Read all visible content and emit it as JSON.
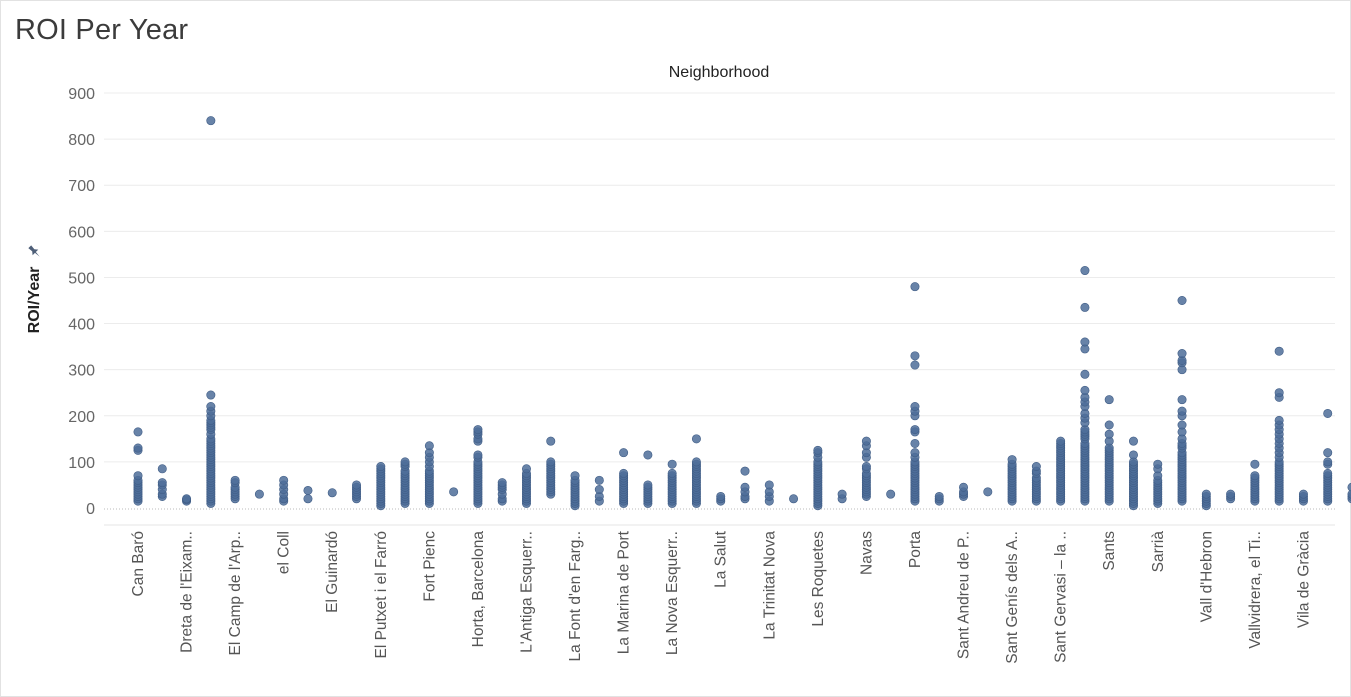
{
  "page": {
    "title": "ROI Per Year"
  },
  "chart_data": {
    "type": "scatter",
    "title": "ROI Per Year",
    "column_header": "Neighborhood",
    "ylabel": "ROI/Year",
    "ylabel_icon": "pin-icon",
    "xlabel": "",
    "ylim": [
      -15,
      920
    ],
    "y_ticks": [
      0,
      100,
      200,
      300,
      400,
      500,
      600,
      700,
      800,
      900
    ],
    "grid": "horizontal",
    "marker_color": "#4e6d99",
    "zero_line": "dotted",
    "categories": [
      "Can Baró",
      "",
      "Dreta de l'Eixam..",
      "",
      "El Camp de l'Arp..",
      "",
      "el Coll",
      "",
      "El Guinardó",
      "",
      "El Putxet i el Farró",
      "",
      "Fort Pienc",
      "",
      "Horta, Barcelona",
      "",
      "L'Antiga Esquerr..",
      "",
      "La Font d'en Farg..",
      "",
      "La Marina de Port",
      "",
      "La Nova Esquerr..",
      "",
      "La Salut",
      "",
      "La Trinitat Nova",
      "",
      "Les Roquetes",
      "",
      "Navas",
      "",
      "Porta",
      "",
      "Sant Andreu de P..",
      "",
      "Sant Genís dels A..",
      "",
      "Sant Gervasi – la ..",
      "",
      "Sants",
      "",
      "Sarrià",
      "",
      "Vall d'Hebron",
      "",
      "Vallvidrera, el Ti..",
      "",
      "Vila de Gràcia",
      ""
    ],
    "series": [
      {
        "values": [
          [
            15,
            20,
            25,
            30,
            35,
            40,
            45,
            50,
            55,
            60,
            70,
            125,
            130,
            165
          ],
          [
            25,
            30,
            40,
            50,
            55,
            85
          ],
          [
            15,
            18,
            20
          ],
          [
            10,
            15,
            20,
            25,
            30,
            35,
            40,
            45,
            50,
            55,
            60,
            65,
            70,
            75,
            80,
            85,
            90,
            95,
            100,
            105,
            110,
            115,
            120,
            125,
            130,
            135,
            140,
            145,
            150,
            160,
            170,
            175,
            180,
            185,
            190,
            200,
            210,
            220,
            245,
            840
          ],
          [
            20,
            25,
            30,
            35,
            40,
            45,
            55,
            60
          ],
          [
            30
          ],
          [
            15,
            20,
            30,
            40,
            50,
            60
          ],
          [
            20,
            38
          ],
          [
            33
          ],
          [
            20,
            25,
            30,
            35,
            40,
            45,
            50
          ],
          [
            5,
            10,
            15,
            20,
            25,
            30,
            35,
            40,
            45,
            50,
            55,
            60,
            65,
            70,
            75,
            80,
            85,
            90
          ],
          [
            10,
            15,
            20,
            25,
            30,
            35,
            40,
            45,
            50,
            55,
            60,
            65,
            70,
            75,
            80,
            90,
            95,
            100
          ],
          [
            10,
            15,
            20,
            25,
            30,
            35,
            40,
            45,
            50,
            55,
            60,
            65,
            70,
            75,
            80,
            90,
            100,
            110,
            120,
            135
          ],
          [
            35
          ],
          [
            10,
            15,
            20,
            25,
            30,
            35,
            40,
            45,
            50,
            55,
            60,
            65,
            70,
            75,
            80,
            85,
            90,
            95,
            100,
            110,
            115,
            145,
            150,
            160,
            165,
            170
          ],
          [
            15,
            20,
            30,
            40,
            45,
            50,
            55
          ],
          [
            10,
            15,
            20,
            25,
            30,
            35,
            40,
            45,
            50,
            55,
            60,
            65,
            70,
            75,
            85
          ],
          [
            30,
            35,
            40,
            45,
            50,
            55,
            60,
            65,
            70,
            75,
            80,
            85,
            90,
            95,
            100,
            145
          ],
          [
            5,
            10,
            15,
            20,
            25,
            30,
            35,
            40,
            45,
            50,
            55,
            60,
            70
          ],
          [
            15,
            25,
            40,
            60
          ],
          [
            10,
            15,
            20,
            25,
            30,
            35,
            40,
            45,
            50,
            55,
            60,
            65,
            70,
            75,
            120
          ],
          [
            10,
            15,
            20,
            25,
            30,
            35,
            40,
            45,
            50,
            115
          ],
          [
            10,
            15,
            20,
            25,
            30,
            35,
            40,
            45,
            50,
            55,
            60,
            65,
            70,
            75,
            95
          ],
          [
            10,
            15,
            20,
            25,
            30,
            35,
            40,
            45,
            50,
            55,
            60,
            65,
            70,
            75,
            80,
            85,
            90,
            95,
            100,
            150
          ],
          [
            15,
            20,
            25
          ],
          [
            20,
            25,
            35,
            45,
            80
          ],
          [
            15,
            25,
            35,
            50
          ],
          [
            20
          ],
          [
            5,
            10,
            15,
            20,
            25,
            30,
            35,
            40,
            45,
            50,
            55,
            60,
            65,
            70,
            75,
            80,
            85,
            90,
            95,
            100,
            110,
            120,
            125
          ],
          [
            20,
            30
          ],
          [
            25,
            30,
            35,
            40,
            45,
            50,
            55,
            60,
            65,
            70,
            75,
            85,
            90,
            110,
            120,
            135,
            145
          ],
          [
            30
          ],
          [
            15,
            20,
            25,
            30,
            35,
            40,
            45,
            50,
            55,
            60,
            65,
            70,
            75,
            80,
            85,
            90,
            95,
            100,
            110,
            120,
            140,
            165,
            170,
            200,
            210,
            220,
            310,
            330,
            480
          ],
          [
            15,
            20,
            25
          ],
          [
            25,
            30,
            35,
            45
          ],
          [
            35
          ],
          [
            15,
            20,
            25,
            30,
            35,
            40,
            45,
            50,
            55,
            60,
            65,
            70,
            75,
            80,
            85,
            90,
            95,
            105
          ],
          [
            15,
            20,
            25,
            30,
            35,
            40,
            45,
            50,
            55,
            60,
            65,
            75,
            80,
            90
          ],
          [
            15,
            20,
            25,
            30,
            35,
            40,
            45,
            50,
            55,
            60,
            65,
            70,
            75,
            80,
            85,
            90,
            95,
            100,
            105,
            110,
            115,
            120,
            125,
            130,
            135,
            140,
            145
          ],
          [
            15,
            20,
            25,
            30,
            35,
            40,
            45,
            50,
            55,
            60,
            65,
            70,
            75,
            80,
            85,
            90,
            95,
            100,
            105,
            110,
            115,
            120,
            125,
            130,
            135,
            140,
            150,
            155,
            160,
            165,
            170,
            185,
            195,
            205,
            220,
            230,
            240,
            255,
            290,
            345,
            360,
            435,
            515
          ],
          [
            15,
            20,
            25,
            30,
            35,
            40,
            45,
            50,
            55,
            60,
            65,
            70,
            75,
            80,
            85,
            90,
            95,
            100,
            105,
            110,
            115,
            120,
            125,
            130,
            145,
            160,
            180,
            235
          ],
          [
            5,
            10,
            15,
            20,
            25,
            30,
            35,
            40,
            45,
            50,
            55,
            60,
            65,
            70,
            75,
            80,
            85,
            90,
            95,
            100,
            115,
            145
          ],
          [
            10,
            15,
            20,
            25,
            30,
            35,
            40,
            45,
            50,
            55,
            60,
            70,
            85,
            95
          ],
          [
            15,
            20,
            25,
            30,
            35,
            40,
            45,
            50,
            55,
            60,
            65,
            70,
            75,
            80,
            85,
            90,
            95,
            100,
            105,
            110,
            115,
            120,
            130,
            135,
            140,
            150,
            165,
            180,
            200,
            210,
            235,
            300,
            315,
            320,
            335,
            450
          ],
          [
            5,
            10,
            15,
            20,
            25,
            30
          ],
          [
            20,
            25,
            30
          ],
          [
            15,
            20,
            25,
            30,
            35,
            40,
            45,
            50,
            55,
            60,
            65,
            70,
            95
          ],
          [
            15,
            20,
            25,
            30,
            35,
            40,
            45,
            50,
            55,
            60,
            65,
            70,
            75,
            80,
            85,
            90,
            95,
            100,
            110,
            120,
            130,
            140,
            150,
            160,
            170,
            180,
            190,
            240,
            250,
            340
          ],
          [
            15,
            20,
            25,
            30
          ],
          [
            15,
            20,
            25,
            30,
            35,
            40,
            45,
            50,
            55,
            60,
            65,
            70,
            75,
            95,
            100,
            120,
            205
          ],
          [
            20,
            25,
            30,
            45
          ]
        ]
      }
    ]
  }
}
